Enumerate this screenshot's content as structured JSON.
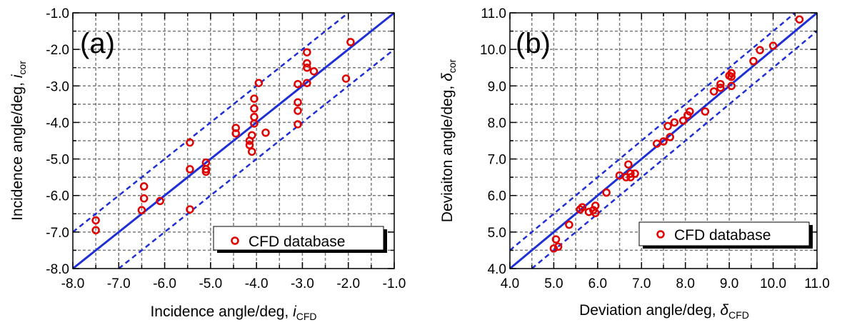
{
  "chart_data": [
    {
      "type": "scatter",
      "panel_label": "(a)",
      "xlabel": "Incidence angle/deg, ",
      "xlabel_var": "i",
      "xlabel_sub": "CFD",
      "ylabel": "Incidence angle/deg, ",
      "ylabel_var": "i",
      "ylabel_sub": "cor",
      "xlim": [
        -8.0,
        -1.0
      ],
      "ylim": [
        -8.0,
        -1.0
      ],
      "xticks": [
        -8.0,
        -7.0,
        -6.0,
        -5.0,
        -4.0,
        -3.0,
        -2.0,
        -1.0
      ],
      "yticks": [
        -8.0,
        -7.0,
        -6.0,
        -5.0,
        -4.0,
        -3.0,
        -2.0,
        -1.0
      ],
      "xtick_labels": [
        "-8.0",
        "-7.0",
        "-6.0",
        "-5.0",
        "-4.0",
        "-3.0",
        "-2.0",
        "-1.0"
      ],
      "ytick_labels": [
        "-8.0",
        "-7.0",
        "-6.0",
        "-5.0",
        "-4.0",
        "-3.0",
        "-2.0",
        "-1.0"
      ],
      "grid": true,
      "legend": {
        "label": "CFD database",
        "position": "bottom-right"
      },
      "reference_lines": [
        {
          "name": "y = x",
          "offset": 0,
          "style": "solid"
        },
        {
          "name": "+1 deg",
          "offset": 1,
          "style": "dashed"
        },
        {
          "name": "-1 deg",
          "offset": -1,
          "style": "dashed"
        }
      ],
      "series": [
        {
          "name": "CFD database",
          "points": [
            [
              -7.5,
              -6.68
            ],
            [
              -7.5,
              -6.95
            ],
            [
              -6.45,
              -5.75
            ],
            [
              -6.45,
              -6.08
            ],
            [
              -6.5,
              -6.4
            ],
            [
              -6.1,
              -6.15
            ],
            [
              -5.45,
              -4.55
            ],
            [
              -5.45,
              -5.28
            ],
            [
              -5.45,
              -6.38
            ],
            [
              -5.1,
              -5.1
            ],
            [
              -5.1,
              -5.28
            ],
            [
              -5.1,
              -5.35
            ],
            [
              -4.45,
              -4.15
            ],
            [
              -4.45,
              -4.3
            ],
            [
              -4.15,
              -4.5
            ],
            [
              -4.15,
              -4.62
            ],
            [
              -4.1,
              -4.35
            ],
            [
              -4.1,
              -4.8
            ],
            [
              -4.05,
              -3.35
            ],
            [
              -4.05,
              -3.62
            ],
            [
              -4.05,
              -3.85
            ],
            [
              -4.05,
              -4.03
            ],
            [
              -3.95,
              -2.92
            ],
            [
              -3.8,
              -4.28
            ],
            [
              -3.1,
              -3.45
            ],
            [
              -3.1,
              -3.68
            ],
            [
              -3.1,
              -4.05
            ],
            [
              -3.1,
              -2.95
            ],
            [
              -2.9,
              -2.08
            ],
            [
              -2.9,
              -2.38
            ],
            [
              -2.9,
              -2.5
            ],
            [
              -2.9,
              -2.92
            ],
            [
              -2.75,
              -2.6
            ],
            [
              -2.05,
              -2.8
            ],
            [
              -1.95,
              -1.8
            ]
          ]
        }
      ]
    },
    {
      "type": "scatter",
      "panel_label": "(b)",
      "xlabel": "Deviation angle/deg, ",
      "xlabel_var": "δ",
      "xlabel_sub": "CFD",
      "ylabel": "Deviaiton angle/deg, ",
      "ylabel_var": "δ",
      "ylabel_sub": "cor",
      "xlim": [
        4.0,
        11.0
      ],
      "ylim": [
        4.0,
        11.0
      ],
      "xticks": [
        4.0,
        5.0,
        6.0,
        7.0,
        8.0,
        9.0,
        10.0,
        11.0
      ],
      "yticks": [
        4.0,
        5.0,
        6.0,
        7.0,
        8.0,
        9.0,
        10.0,
        11.0
      ],
      "xtick_labels": [
        "4.0",
        "5.0",
        "6.0",
        "7.0",
        "8.0",
        "9.0",
        "10.0",
        "11.0"
      ],
      "ytick_labels": [
        "4.0",
        "5.0",
        "6.0",
        "7.0",
        "8.0",
        "9.0",
        "10.0",
        "11.0"
      ],
      "grid": true,
      "legend": {
        "label": "CFD database",
        "position": "bottom-right"
      },
      "reference_lines": [
        {
          "name": "y = x",
          "offset": 0,
          "style": "solid"
        },
        {
          "name": "+0.5 deg",
          "offset": 0.5,
          "style": "dashed"
        },
        {
          "name": "-0.5 deg",
          "offset": -0.5,
          "style": "dashed"
        }
      ],
      "series": [
        {
          "name": "CFD database",
          "points": [
            [
              5.0,
              4.55
            ],
            [
              5.1,
              4.6
            ],
            [
              5.05,
              4.8
            ],
            [
              5.35,
              5.2
            ],
            [
              5.6,
              5.62
            ],
            [
              5.65,
              5.68
            ],
            [
              5.8,
              5.55
            ],
            [
              5.9,
              5.6
            ],
            [
              5.95,
              5.72
            ],
            [
              5.95,
              5.52
            ],
            [
              6.2,
              6.08
            ],
            [
              6.5,
              6.55
            ],
            [
              6.65,
              6.5
            ],
            [
              6.7,
              6.85
            ],
            [
              6.75,
              6.6
            ],
            [
              6.75,
              6.5
            ],
            [
              6.85,
              6.6
            ],
            [
              7.35,
              7.42
            ],
            [
              7.5,
              7.48
            ],
            [
              7.6,
              7.9
            ],
            [
              7.65,
              7.6
            ],
            [
              7.75,
              8.0
            ],
            [
              7.95,
              8.05
            ],
            [
              8.05,
              8.2
            ],
            [
              8.1,
              8.3
            ],
            [
              8.45,
              8.3
            ],
            [
              8.65,
              8.85
            ],
            [
              8.8,
              8.95
            ],
            [
              8.8,
              9.05
            ],
            [
              9.0,
              9.28
            ],
            [
              9.05,
              9.35
            ],
            [
              9.05,
              9.25
            ],
            [
              9.05,
              9.0
            ],
            [
              9.55,
              9.68
            ],
            [
              9.7,
              9.98
            ],
            [
              10.0,
              10.1
            ],
            [
              10.6,
              10.82
            ]
          ]
        }
      ]
    }
  ]
}
